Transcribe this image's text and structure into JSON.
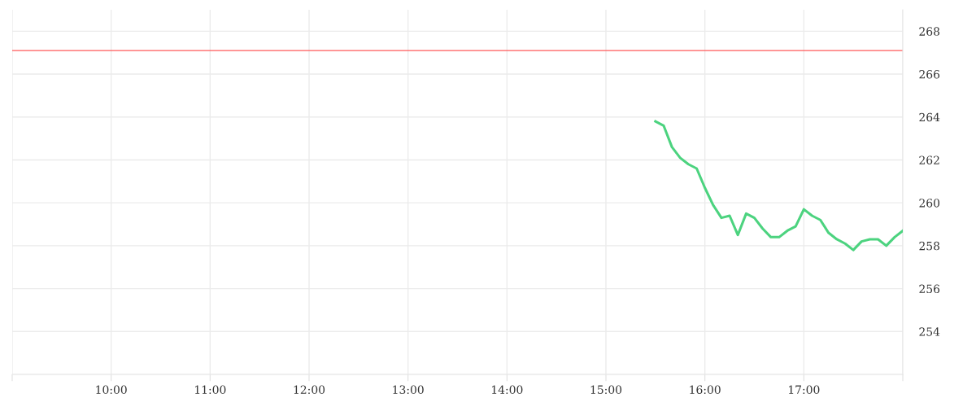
{
  "chart_data": {
    "type": "line",
    "x": [
      15.5,
      15.583,
      15.667,
      15.75,
      15.833,
      15.917,
      16.0,
      16.083,
      16.167,
      16.25,
      16.333,
      16.417,
      16.5,
      16.583,
      16.667,
      16.75,
      16.833,
      16.917,
      17.0,
      17.083,
      17.167,
      17.25,
      17.333,
      17.417,
      17.5,
      17.583,
      17.667,
      17.75,
      17.833,
      17.917,
      18.0
    ],
    "series": [
      {
        "color": "#4cd37f",
        "values": [
          263.8,
          263.6,
          262.6,
          262.1,
          261.8,
          261.6,
          260.7,
          259.9,
          259.3,
          259.4,
          258.5,
          259.5,
          259.3,
          258.8,
          258.4,
          258.4,
          258.7,
          258.9,
          259.7,
          259.4,
          259.2,
          258.6,
          258.3,
          258.1,
          257.8,
          258.2,
          258.3,
          258.3,
          258.0,
          258.4,
          258.7
        ]
      }
    ],
    "xlim": [
      9,
      18
    ],
    "xticks": [
      {
        "value": 9,
        "label": null
      },
      {
        "value": 10,
        "label": "10:00"
      },
      {
        "value": 11,
        "label": "11:00"
      },
      {
        "value": 12,
        "label": "12:00"
      },
      {
        "value": 13,
        "label": "13:00"
      },
      {
        "value": 14,
        "label": "14:00"
      },
      {
        "value": 15,
        "label": "15:00"
      },
      {
        "value": 16,
        "label": "16:00"
      },
      {
        "value": 17,
        "label": "17:00"
      },
      {
        "value": 18,
        "label": null
      }
    ],
    "ylim": [
      252,
      269
    ],
    "yticks": [
      {
        "value": 252,
        "label": null
      },
      254,
      256,
      258,
      260,
      262,
      264,
      266,
      268
    ],
    "ref_lines": [
      {
        "axis": "y",
        "value": 267.1,
        "color": "#ff5a5a"
      }
    ],
    "grid": true,
    "legend": false,
    "marker": "none",
    "line_style": "solid"
  }
}
